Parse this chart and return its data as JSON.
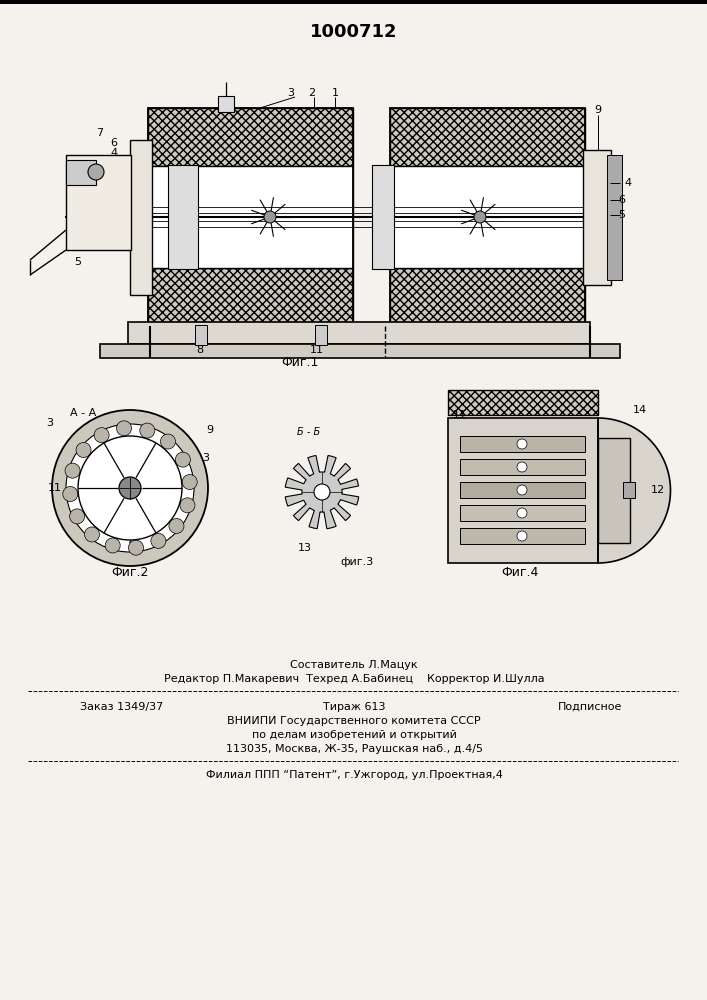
{
  "title": "1000712",
  "bg_color": "#f5f2ed",
  "fig1_caption": "Фиг.1",
  "fig2_caption": "Фиг.2",
  "fig3_caption": "фиг.3",
  "fig4_caption": "Фиг.4",
  "section_aa": "A - A",
  "section_bb": "Б - Б",
  "footer_sestavitel": "Составитель Л.Мацук",
  "footer_editor": "Редактор П.Макаревич  Техред А.Бабинец    Корректор И.Шулла",
  "footer_zakaz": "Заказ 1349/37",
  "footer_tirazh": "Тираж 613",
  "footer_podpisnoe": "Подписное",
  "footer_vniip1": "ВНИИПИ Государственного комитета СССР",
  "footer_vniip2": "по делам изобретений и открытий",
  "footer_addr": "113035, Москва, Ж-35, Раушская наб., д.4/5",
  "footer_filial": "Филиал ППП “Патент”, г.Ужгород, ул.Проектная,4"
}
